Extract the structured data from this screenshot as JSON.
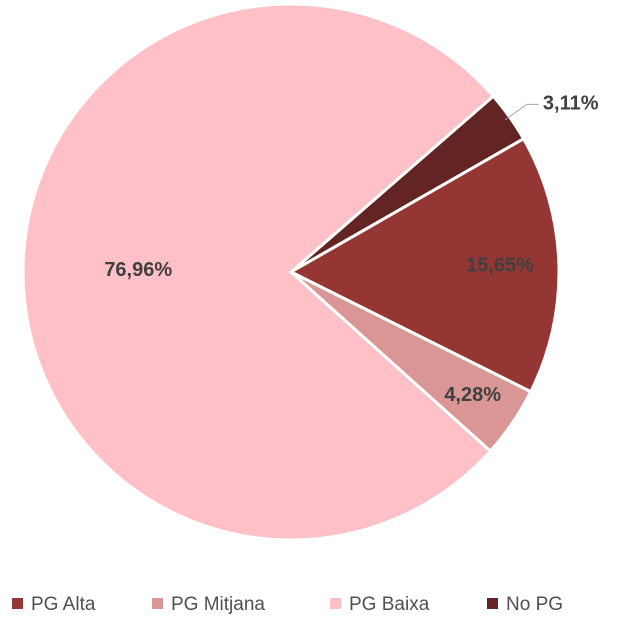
{
  "chart_data": {
    "type": "pie",
    "categories": [
      "PG Alta",
      "PG Mitjana",
      "PG Baixa",
      "No PG"
    ],
    "values": [
      15.65,
      4.28,
      76.96,
      3.11
    ],
    "value_labels": [
      "15,65%",
      "4,28%",
      "76,96%",
      "3,11%"
    ],
    "colors": [
      "#943634",
      "#d99694",
      "#ffc0c7",
      "#632523"
    ],
    "legend": "bottom"
  }
}
